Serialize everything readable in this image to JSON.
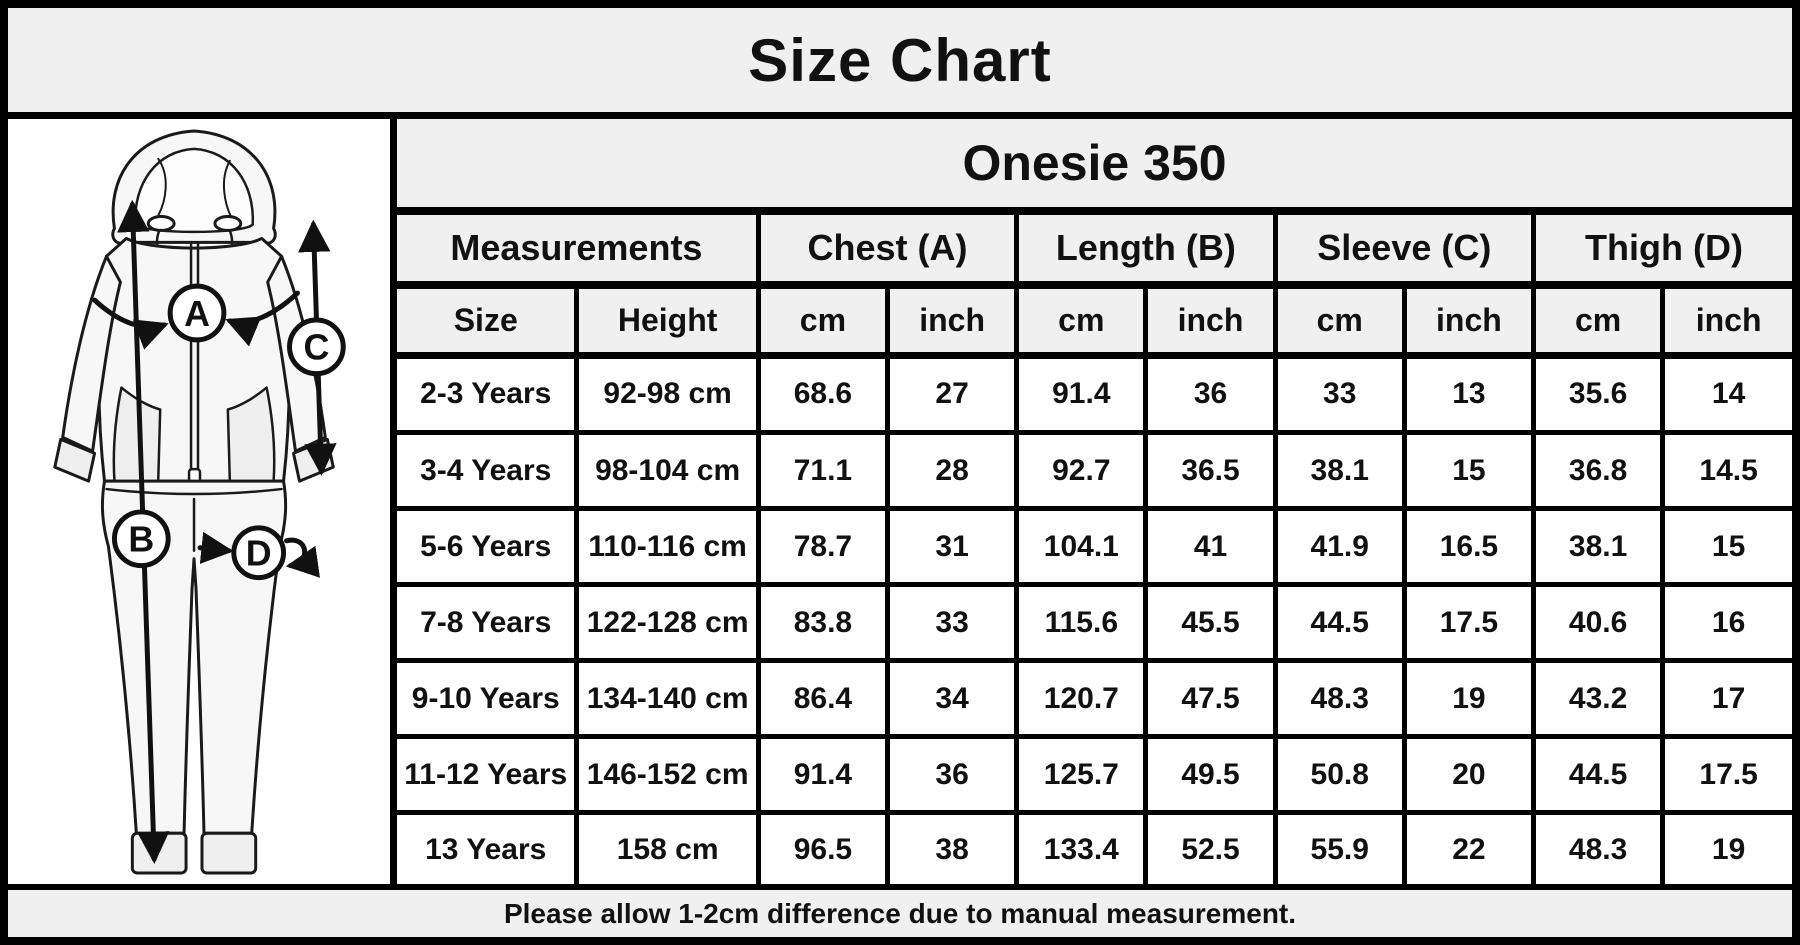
{
  "title": "Size Chart",
  "product": {
    "name": "Onesie 350"
  },
  "diagram": {
    "labels": [
      "A",
      "B",
      "C",
      "D"
    ]
  },
  "table": {
    "group_headers": [
      {
        "label": "Measurements",
        "span": 2
      },
      {
        "label": "Chest (A)",
        "span": 2
      },
      {
        "label": "Length (B)",
        "span": 2
      },
      {
        "label": "Sleeve (C)",
        "span": 2
      },
      {
        "label": "Thigh (D)",
        "span": 2
      }
    ],
    "sub_headers": [
      "Size",
      "Height",
      "cm",
      "inch",
      "cm",
      "inch",
      "cm",
      "inch",
      "cm",
      "inch"
    ],
    "rows": [
      [
        "2-3 Years",
        "92-98 cm",
        "68.6",
        "27",
        "91.4",
        "36",
        "33",
        "13",
        "35.6",
        "14"
      ],
      [
        "3-4 Years",
        "98-104 cm",
        "71.1",
        "28",
        "92.7",
        "36.5",
        "38.1",
        "15",
        "36.8",
        "14.5"
      ],
      [
        "5-6 Years",
        "110-116 cm",
        "78.7",
        "31",
        "104.1",
        "41",
        "41.9",
        "16.5",
        "38.1",
        "15"
      ],
      [
        "7-8 Years",
        "122-128 cm",
        "83.8",
        "33",
        "115.6",
        "45.5",
        "44.5",
        "17.5",
        "40.6",
        "16"
      ],
      [
        "9-10 Years",
        "134-140 cm",
        "86.4",
        "34",
        "120.7",
        "47.5",
        "48.3",
        "19",
        "43.2",
        "17"
      ],
      [
        "11-12 Years",
        "146-152 cm",
        "91.4",
        "36",
        "125.7",
        "49.5",
        "50.8",
        "20",
        "44.5",
        "17.5"
      ],
      [
        "13 Years",
        "158 cm",
        "96.5",
        "38",
        "133.4",
        "52.5",
        "55.9",
        "22",
        "48.3",
        "19"
      ]
    ]
  },
  "footer": {
    "note": "Please allow 1-2cm difference due to manual measurement."
  },
  "colors": {
    "panel_bg": "#f0f0f0",
    "cell_bg": "#ffffff",
    "border": "#000000",
    "text": "#111111"
  }
}
